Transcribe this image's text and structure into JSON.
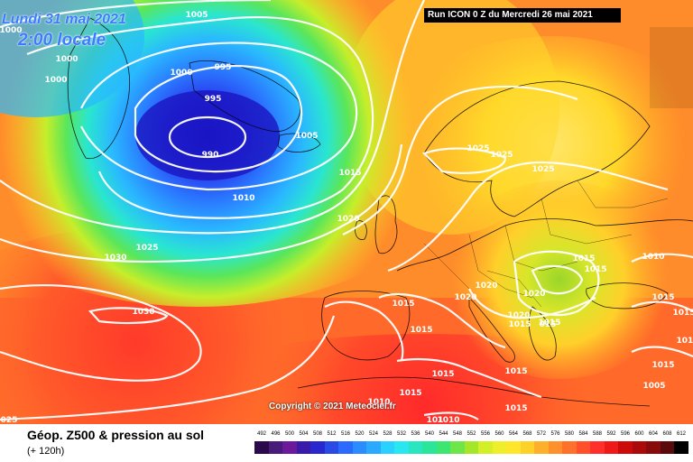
{
  "header": {
    "date": "Lundi 31 mai 2021",
    "time": "2:00 locale",
    "run": "Run ICON 0 Z du Mercredi 26 mai 2021"
  },
  "copyright": "Copyright © 2021 Meteociel.fr",
  "footer": {
    "title": "Géop. Z500 & pression au sol",
    "subtitle": "(+ 120h)"
  },
  "legend": {
    "ticks": [
      "492",
      "496",
      "500",
      "504",
      "508",
      "512",
      "516",
      "520",
      "524",
      "528",
      "532",
      "536",
      "540",
      "544",
      "548",
      "552",
      "556",
      "560",
      "564",
      "568",
      "572",
      "576",
      "580",
      "584",
      "588",
      "592",
      "596",
      "600",
      "604",
      "608",
      "612"
    ],
    "colors": [
      "#2a0a4a",
      "#4a1a7a",
      "#6a1a9a",
      "#3a1aaa",
      "#2828cc",
      "#2a4ae6",
      "#2a6aff",
      "#2a8cff",
      "#2aaaff",
      "#2ad0ff",
      "#2ae6ee",
      "#2ae6c0",
      "#2ae699",
      "#3ce670",
      "#6ee64a",
      "#a6e62a",
      "#d4ee2a",
      "#eeee2a",
      "#ffe62a",
      "#ffd02a",
      "#ffb02a",
      "#ff902a",
      "#ff702a",
      "#ff502a",
      "#ff302a",
      "#ee1a1a",
      "#cc0a0a",
      "#aa0a0a",
      "#880a0a",
      "#5a0a0a",
      "#000000"
    ]
  },
  "isobar_labels": [
    {
      "text": "1005"
    },
    {
      "text": "1000"
    },
    {
      "text": "1000"
    },
    {
      "text": "1000"
    },
    {
      "text": "995"
    },
    {
      "text": "1000"
    },
    {
      "text": "995"
    },
    {
      "text": "990"
    },
    {
      "text": "1005"
    },
    {
      "text": "1015"
    },
    {
      "text": "1010"
    },
    {
      "text": "1020"
    },
    {
      "text": "1025"
    },
    {
      "text": "1030"
    },
    {
      "text": "1030"
    },
    {
      "text": "025"
    },
    {
      "text": "1025"
    },
    {
      "text": "1025"
    },
    {
      "text": "1025"
    },
    {
      "text": "1015"
    },
    {
      "text": "1015"
    },
    {
      "text": "1010"
    },
    {
      "text": "1020"
    },
    {
      "text": "1020"
    },
    {
      "text": "1015"
    },
    {
      "text": "1020"
    },
    {
      "text": "1015"
    },
    {
      "text": "1020"
    },
    {
      "text": "015"
    },
    {
      "text": "1015"
    },
    {
      "text": "1015"
    },
    {
      "text": "1015"
    },
    {
      "text": "1015"
    },
    {
      "text": "1015"
    },
    {
      "text": "1015"
    },
    {
      "text": "1015"
    },
    {
      "text": "1015"
    },
    {
      "text": "1010"
    },
    {
      "text": "1010"
    },
    {
      "text": "1005"
    },
    {
      "text": "1015"
    },
    {
      "text": "101"
    },
    {
      "text": "1015"
    }
  ]
}
